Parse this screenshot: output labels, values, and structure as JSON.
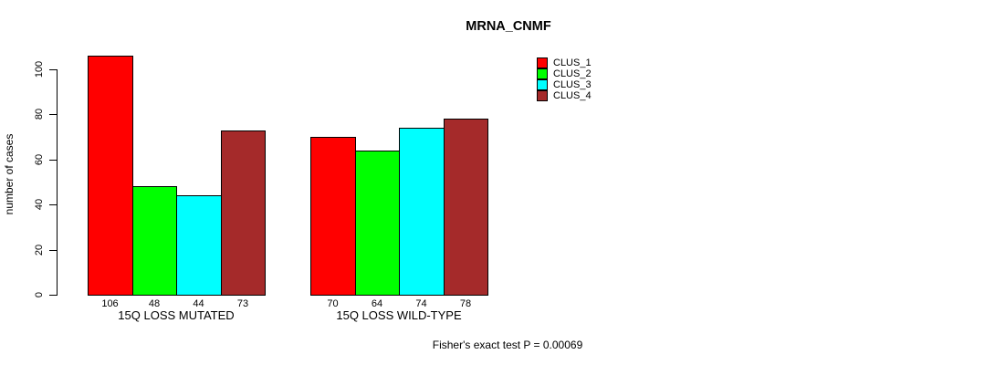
{
  "chart_data": {
    "type": "bar",
    "title": "MRNA_CNMF",
    "xlabel": "",
    "ylabel": "number of cases",
    "ylim": [
      0,
      106
    ],
    "yticks": [
      0,
      20,
      40,
      60,
      80,
      100
    ],
    "grid": false,
    "legend_position": "top-right",
    "groups": [
      "15Q LOSS MUTATED",
      "15Q LOSS WILD-TYPE"
    ],
    "series": [
      {
        "name": "CLUS_1",
        "color": "#FF0000",
        "values": [
          106,
          70
        ]
      },
      {
        "name": "CLUS_2",
        "color": "#00FF00",
        "values": [
          48,
          64
        ]
      },
      {
        "name": "CLUS_3",
        "color": "#00FFFF",
        "values": [
          44,
          74
        ]
      },
      {
        "name": "CLUS_4",
        "color": "#A52A2A",
        "values": [
          73,
          78
        ]
      }
    ],
    "bar_value_labels": [
      [
        106,
        48,
        44,
        73
      ],
      [
        70,
        64,
        74,
        78
      ]
    ],
    "annotation": "Fisher's exact test P = 0.00069",
    "colors": {
      "axis": "#000000",
      "text": "#000000",
      "background": "#FFFFFF",
      "bar_border": "#000000"
    }
  }
}
